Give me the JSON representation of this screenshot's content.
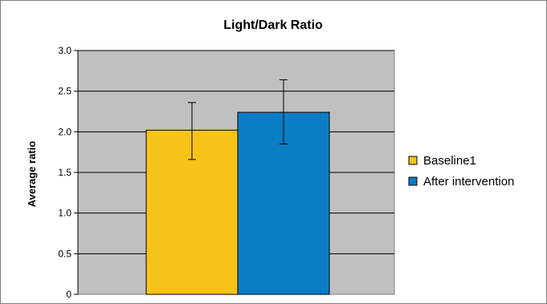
{
  "chart_data": {
    "type": "bar",
    "title": "Light/Dark Ratio",
    "ylabel": "Average ratio",
    "xlabel": "",
    "ylim": [
      0,
      3.0
    ],
    "yticks": [
      0,
      0.5,
      1.0,
      1.5,
      2.0,
      2.5,
      3.0
    ],
    "ytick_labels": [
      "0",
      "0.5",
      "1.0",
      "1.5",
      "2.0",
      "2.5",
      "3.0"
    ],
    "grid": true,
    "legend_position": "right",
    "plot_background": "#c0c0c0",
    "series": [
      {
        "name": "Baseline1",
        "value": 2.02,
        "error_low": 1.66,
        "error_high": 2.36,
        "color": "#f7c21a"
      },
      {
        "name": "After intervention",
        "value": 2.24,
        "error_low": 1.85,
        "error_high": 2.64,
        "color": "#0a7dc4"
      }
    ]
  }
}
